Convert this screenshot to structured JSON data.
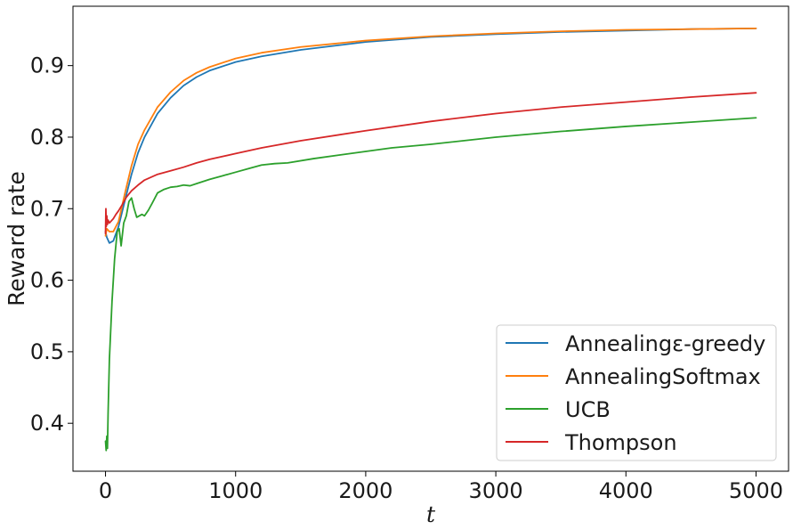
{
  "chart_data": {
    "type": "line",
    "title": "",
    "xlabel": "t",
    "ylabel": "Reward rate",
    "xlim": [
      -250,
      5250
    ],
    "ylim": [
      0.333,
      0.983
    ],
    "xticks": [
      0,
      1000,
      2000,
      3000,
      4000,
      5000
    ],
    "xtick_labels": [
      "0",
      "1000",
      "2000",
      "3000",
      "4000",
      "5000"
    ],
    "yticks": [
      0.4,
      0.5,
      0.6,
      0.7,
      0.8,
      0.9
    ],
    "ytick_labels": [
      "0.4",
      "0.5",
      "0.6",
      "0.7",
      "0.8",
      "0.9"
    ],
    "grid": false,
    "legend_position": "lower-right",
    "series": [
      {
        "name": "Annealingε-greedy",
        "color": "#1f77b4",
        "x": [
          0,
          10,
          30,
          60,
          100,
          150,
          200,
          250,
          300,
          400,
          500,
          600,
          700,
          800,
          1000,
          1200,
          1500,
          2000,
          2500,
          3000,
          3500,
          4000,
          4500,
          5000
        ],
        "y": [
          0.668,
          0.66,
          0.652,
          0.655,
          0.675,
          0.712,
          0.748,
          0.778,
          0.8,
          0.833,
          0.855,
          0.872,
          0.884,
          0.893,
          0.905,
          0.913,
          0.922,
          0.933,
          0.94,
          0.944,
          0.947,
          0.949,
          0.951,
          0.952
        ]
      },
      {
        "name": "AnnealingSoftmax",
        "color": "#ff7f0e",
        "x": [
          0,
          10,
          30,
          60,
          100,
          150,
          200,
          250,
          300,
          400,
          500,
          600,
          700,
          800,
          1000,
          1200,
          1500,
          2000,
          2500,
          3000,
          3500,
          4000,
          4500,
          5000
        ],
        "y": [
          0.662,
          0.672,
          0.668,
          0.668,
          0.682,
          0.722,
          0.76,
          0.79,
          0.81,
          0.842,
          0.863,
          0.879,
          0.89,
          0.898,
          0.91,
          0.918,
          0.926,
          0.935,
          0.941,
          0.945,
          0.948,
          0.95,
          0.951,
          0.952
        ]
      },
      {
        "name": "UCB",
        "color": "#2ca02c",
        "x": [
          0,
          5,
          10,
          15,
          20,
          30,
          50,
          70,
          90,
          105,
          120,
          140,
          160,
          180,
          200,
          220,
          240,
          260,
          280,
          300,
          330,
          360,
          400,
          450,
          500,
          550,
          600,
          650,
          700,
          800,
          900,
          1000,
          1100,
          1200,
          1300,
          1400,
          1600,
          1800,
          2000,
          2200,
          2500,
          3000,
          3500,
          4000,
          4500,
          5000
        ],
        "y": [
          0.375,
          0.362,
          0.382,
          0.365,
          0.415,
          0.49,
          0.57,
          0.63,
          0.668,
          0.672,
          0.648,
          0.68,
          0.69,
          0.71,
          0.715,
          0.7,
          0.688,
          0.69,
          0.692,
          0.69,
          0.698,
          0.708,
          0.722,
          0.727,
          0.73,
          0.731,
          0.733,
          0.732,
          0.735,
          0.741,
          0.746,
          0.751,
          0.756,
          0.761,
          0.763,
          0.764,
          0.77,
          0.775,
          0.78,
          0.785,
          0.79,
          0.8,
          0.808,
          0.815,
          0.821,
          0.827
        ]
      },
      {
        "name": "Thompson",
        "color": "#d62728",
        "x": [
          0,
          3,
          6,
          10,
          15,
          20,
          30,
          45,
          60,
          80,
          100,
          130,
          160,
          200,
          250,
          300,
          400,
          500,
          600,
          700,
          800,
          1000,
          1200,
          1500,
          2000,
          2500,
          3000,
          3500,
          4000,
          4500,
          5000
        ],
        "y": [
          0.665,
          0.7,
          0.675,
          0.69,
          0.678,
          0.684,
          0.68,
          0.683,
          0.686,
          0.692,
          0.697,
          0.706,
          0.716,
          0.725,
          0.733,
          0.74,
          0.748,
          0.753,
          0.758,
          0.764,
          0.769,
          0.777,
          0.785,
          0.795,
          0.809,
          0.822,
          0.833,
          0.842,
          0.849,
          0.856,
          0.862
        ]
      }
    ]
  }
}
